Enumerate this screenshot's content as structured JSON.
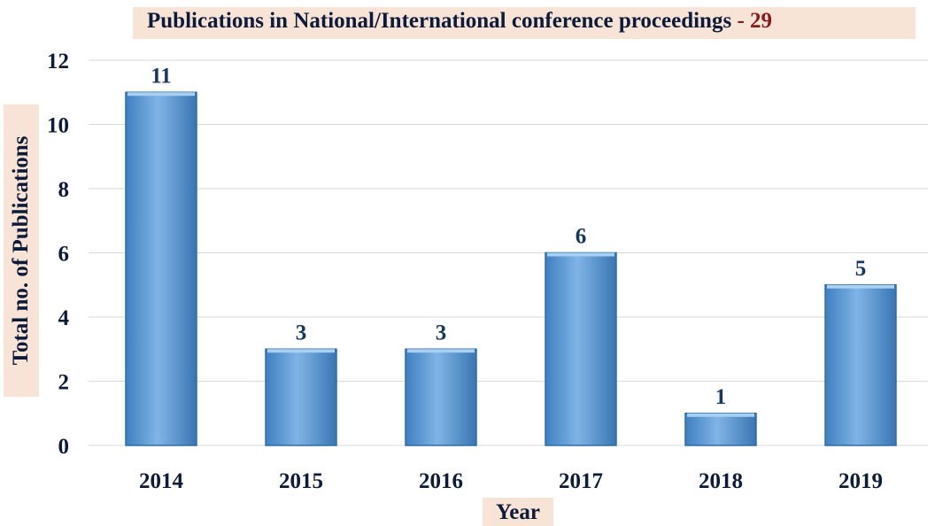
{
  "chart_data": {
    "type": "bar",
    "title": "Publications in National/International  conference proceedings",
    "title_separator": "-",
    "title_total": "29",
    "xlabel": "Year",
    "ylabel": "Total no. of Publications",
    "categories": [
      "2014",
      "2015",
      "2016",
      "2017",
      "2018",
      "2019"
    ],
    "values": [
      11,
      3,
      3,
      6,
      1,
      5
    ],
    "ylim": [
      0,
      12
    ],
    "yticks": [
      0,
      2,
      4,
      6,
      8,
      10,
      12
    ],
    "grid": true,
    "legend": "none",
    "colors": {
      "bar": "#5b9bd5",
      "bar_edge": "#2e6da4",
      "title_background": "#f8e4d6",
      "title_total": "#8b1a1a",
      "text": "#0d1b3a",
      "data_label": "#17365d",
      "grid": "#d9d9d9"
    }
  }
}
